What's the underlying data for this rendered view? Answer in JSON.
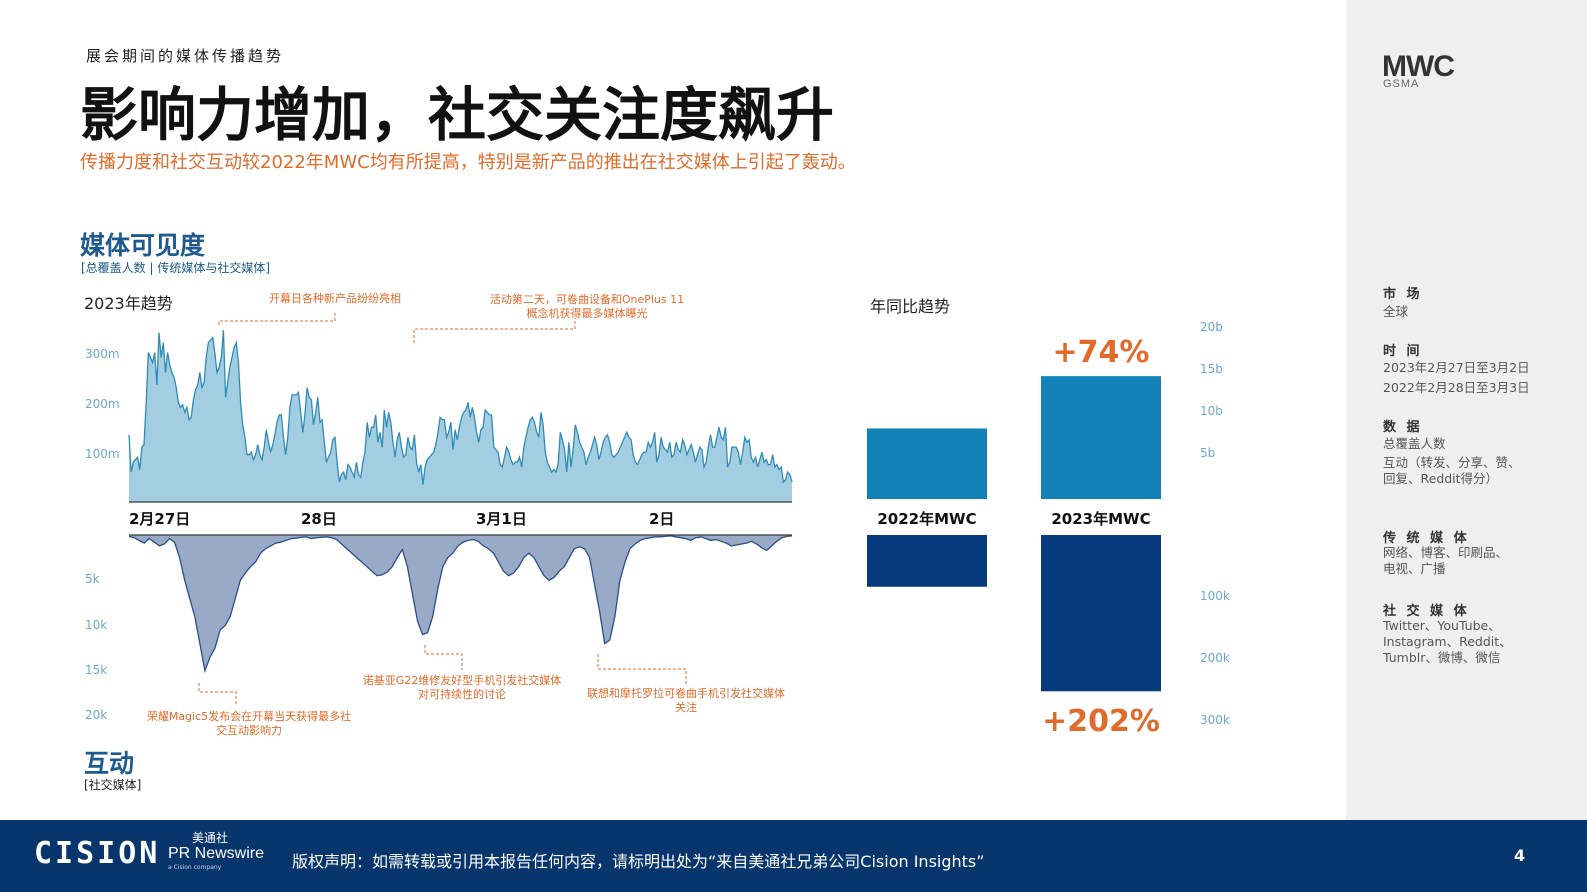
{
  "header": {
    "kicker": "展会期间的媒体传播趋势",
    "title": "影响力增加，社交关注度飙升",
    "subtitle": "传播力度和社交互动较2022年MWC均有所提高，特别是新产品的推出在社交媒体上引起了轰动。"
  },
  "logo": {
    "main": "MWC",
    "sub": "GSMA"
  },
  "section_media": {
    "title": "媒体可见度",
    "sub": "[总覆盖人数 | 传统媒体与社交媒体]"
  },
  "section_engage": {
    "title": "互动",
    "sub": "[社交媒体]"
  },
  "panels": {
    "trend": "2023年趋势",
    "yoy": "年同比趋势"
  },
  "colors": {
    "area_top": "#a3cde0",
    "area_top_line": "#2f8bb7",
    "area_bottom": "#98aac6",
    "area_bottom_line": "#2c4f87",
    "bar_top": "#1282b8",
    "bar_bottom": "#073a7c",
    "accent": "#e06b2a",
    "footer": "#08356b"
  },
  "chart_data": [
    {
      "type": "area",
      "title": "媒体可见度",
      "x_ticks": [
        "2月27日",
        "28日",
        "3月1日",
        "2日"
      ],
      "y_ticks": [
        "100m",
        "200m",
        "300m"
      ],
      "ylim": [
        0,
        350
      ],
      "series": [
        {
          "values": [
            135,
            60,
            80,
            85,
            90,
            65,
            110,
            115,
            200,
            300,
            290,
            280,
            300,
            235,
            340,
            290,
            320,
            260,
            300,
            275,
            260,
            250,
            230,
            200,
            190,
            195,
            180,
            190,
            165,
            170,
            205,
            225,
            235,
            260,
            230,
            240,
            290,
            320,
            325,
            330,
            300,
            260,
            270,
            290,
            345,
            210,
            240,
            270,
            290,
            310,
            320,
            280,
            200,
            155,
            130,
            95,
            95,
            100,
            85,
            95,
            115,
            95,
            85,
            110,
            145,
            120,
            100,
            115,
            135,
            160,
            175,
            175,
            130,
            95,
            130,
            190,
            215,
            215,
            215,
            220,
            180,
            140,
            175,
            230,
            210,
            205,
            155,
            180,
            210,
            160,
            165,
            120,
            80,
            90,
            100,
            125,
            130,
            80,
            40,
            55,
            60,
            45,
            75,
            70,
            60,
            50,
            80,
            55,
            50,
            80,
            100,
            160,
            130,
            150,
            150,
            175,
            120,
            140,
            110,
            185,
            150,
            180,
            160,
            120,
            90,
            125,
            140,
            110,
            90,
            95,
            130,
            110,
            105,
            135,
            80,
            60,
            75,
            35,
            70,
            85,
            90,
            95,
            100,
            115,
            140,
            170,
            165,
            165,
            130,
            140,
            160,
            105,
            145,
            125,
            150,
            170,
            180,
            185,
            200,
            170,
            190,
            170,
            140,
            120,
            145,
            150,
            185,
            180,
            175,
            175,
            110,
            105,
            100,
            75,
            70,
            90,
            110,
            100,
            85,
            75,
            80,
            80,
            90,
            70,
            110,
            130,
            150,
            165,
            170,
            160,
            140,
            130,
            180,
            155,
            100,
            80,
            70,
            60,
            65,
            60,
            75,
            140,
            125,
            105,
            60,
            120,
            70,
            105,
            155,
            140,
            120,
            110,
            100,
            75,
            90,
            100,
            115,
            130,
            115,
            85,
            100,
            120,
            130,
            135,
            120,
            95,
            90,
            95,
            100,
            110,
            120,
            130,
            140,
            130,
            125,
            95,
            80,
            75,
            85,
            95,
            100,
            100,
            120,
            110,
            120,
            140,
            80,
            95,
            130,
            110,
            105,
            100,
            120,
            90,
            95,
            120,
            105,
            100,
            125,
            115,
            95,
            105,
            115,
            100,
            80,
            95,
            110,
            105,
            70,
            80,
            110,
            135,
            110,
            110,
            130,
            150,
            130,
            125,
            150,
            70,
            80,
            110,
            110,
            110,
            100,
            75,
            100,
            130,
            120,
            125,
            90,
            80,
            90,
            70,
            85,
            100,
            80,
            85,
            75,
            75,
            95,
            70,
            75,
            65,
            70,
            40,
            45,
            60,
            55,
            40
          ]
        }
      ]
    },
    {
      "type": "area",
      "title": "互动",
      "inverted": true,
      "y_ticks": [
        "5k",
        "10k",
        "15k",
        "20k"
      ],
      "ylim": [
        0,
        20000
      ],
      "series": [
        {
          "values": [
            150,
            300,
            600,
            900,
            400,
            800,
            1200,
            1000,
            400,
            800,
            2500,
            5000,
            7000,
            9000,
            12000,
            15000,
            13500,
            12500,
            10500,
            10000,
            9000,
            7000,
            5000,
            4200,
            3500,
            3000,
            2000,
            1500,
            1200,
            900,
            800,
            600,
            400,
            350,
            250,
            200,
            400,
            300,
            250,
            200,
            300,
            500,
            1000,
            1500,
            2000,
            2500,
            3000,
            3500,
            4000,
            4500,
            4400,
            4100,
            3500,
            2500,
            1600,
            3500,
            6500,
            9500,
            11000,
            10800,
            9000,
            6000,
            3500,
            2500,
            2000,
            1200,
            800,
            600,
            500,
            700,
            1200,
            1500,
            2000,
            3000,
            4000,
            4500,
            4200,
            3500,
            2500,
            2000,
            2500,
            3500,
            4500,
            5000,
            4700,
            4000,
            3500,
            2500,
            1500,
            1300,
            1500,
            2500,
            5500,
            8500,
            12000,
            11600,
            9000,
            5000,
            3000,
            1500,
            1000,
            600,
            400,
            300,
            200,
            200,
            150,
            100,
            200,
            300,
            400,
            600,
            300,
            200,
            400,
            600,
            500,
            700,
            900,
            1200,
            1100,
            1000,
            900,
            700,
            1000,
            1400,
            1700,
            1200,
            700,
            300,
            150,
            100
          ]
        }
      ]
    },
    {
      "type": "bar",
      "title": "年同比趋势",
      "categories": [
        "2022年MWC",
        "2023年MWC"
      ],
      "series": [
        {
          "name": "媒体可见度",
          "values": [
            8.5,
            14.8
          ],
          "change_label": "+74%",
          "y_ticks": [
            "5b",
            "10b",
            "15b",
            "20b"
          ]
        },
        {
          "name": "互动",
          "values": [
            90000,
            271800
          ],
          "change_label": "+202%",
          "y_ticks": [
            "100k",
            "200k",
            "300k"
          ]
        }
      ]
    }
  ],
  "annotations": {
    "top1": "开幕日各种新产品纷纷亮相",
    "top2_l1": "活动第二天，可卷曲设备和OnePlus 11",
    "top2_l2": "概念机获得最多媒体曝光",
    "bot1_l1": "荣耀Magic5发布会在开幕当天获得最多社",
    "bot1_l2": "交互动影响力",
    "bot2_l1": "诺基亚G22维修友好型手机引发社交媒体",
    "bot2_l2": "对可持续性的讨论",
    "bot3_l1": "联想和摩托罗拉可卷曲手机引发社交媒体",
    "bot3_l2": "关注"
  },
  "sidebar": {
    "market_h": "市 场",
    "market_v": "全球",
    "time_h": "时 间",
    "time_v1": "2023年2月27日至3月2日",
    "time_v2": "2022年2月28日至3月3日",
    "data_h": "数 据",
    "data_v1": "总覆盖人数",
    "data_v2": "互动（转发、分享、赞、",
    "data_v3": "回复、Reddit得分）",
    "trad_h": "传 统 媒 体",
    "trad_v1": "网络、博客、印刷品、",
    "trad_v2": "电视、广播",
    "social_h": "社 交 媒 体",
    "social_v1": "Twitter、YouTube、",
    "social_v2": "Instagram、Reddit、",
    "social_v3": "Tumblr、微博、微信"
  },
  "footer": {
    "brand": "CISION",
    "pr_cn": "美通社",
    "pr_en": "PR Newswire",
    "pr_small": "a Cision company",
    "copyright": "版权声明：如需转载或引用本报告任何内容，请标明出处为“来自美通社兄弟公司Cision Insights”",
    "page": "4"
  }
}
